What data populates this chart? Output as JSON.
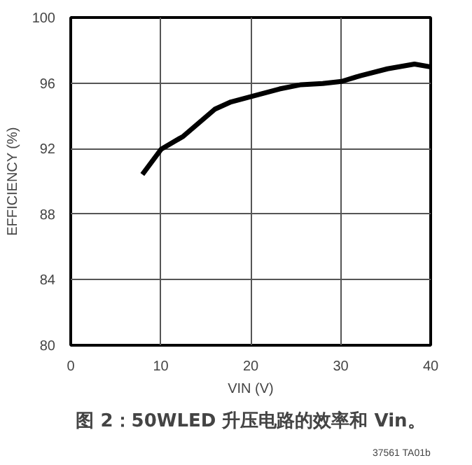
{
  "chart_data": {
    "type": "line",
    "xlabel": "VIN (V)",
    "ylabel": "EFFICIENCY (%)",
    "title": "图 2：50WLED 升压电路的效率和 Vin。",
    "annotations": [
      "37561 TA01b"
    ],
    "xlim": [
      0,
      40
    ],
    "ylim": [
      80,
      100
    ],
    "xticks": [
      0,
      10,
      20,
      30,
      40
    ],
    "yticks": [
      80,
      84,
      88,
      92,
      96,
      100
    ],
    "grid": true,
    "series": [
      {
        "color": "#000000",
        "x": [
          7.96,
          10.06,
          12.5,
          16.0,
          17.8,
          20.2,
          23.2,
          25.6,
          28.0,
          30.1,
          32.2,
          35.2,
          38.2,
          40
        ],
        "values": [
          90.42,
          91.97,
          92.75,
          94.4,
          94.85,
          95.2,
          95.64,
          95.9,
          95.97,
          96.1,
          96.45,
          96.87,
          97.16,
          96.99
        ]
      }
    ]
  }
}
